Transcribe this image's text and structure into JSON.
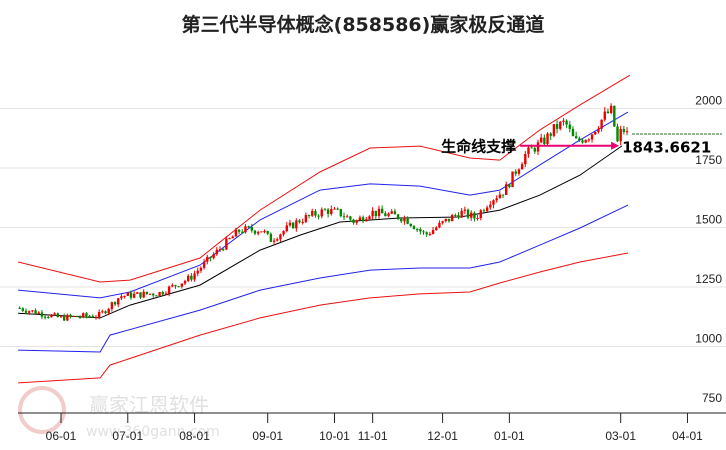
{
  "title": "第三代半导体概念(858586)赢家极反通道",
  "watermark": {
    "brand": "赢家江恩软件",
    "url": "www.360gann.com",
    "seal": "江恩赢家"
  },
  "chart_data": {
    "type": "candlestick",
    "title": "第三代半导体概念(858586)赢家极反通道",
    "x_unit": "trading-day index from 06-01",
    "x_ticks": [
      {
        "label": "06-01",
        "x": 0
      },
      {
        "label": "07-01",
        "x": 21
      },
      {
        "label": "08-01",
        "x": 42
      },
      {
        "label": "09-01",
        "x": 65
      },
      {
        "label": "10-01",
        "x": 86
      },
      {
        "label": "11-01",
        "x": 98
      },
      {
        "label": "12-01",
        "x": 120
      },
      {
        "label": "01-01",
        "x": 141
      },
      {
        "label": "03-01",
        "x": 176
      },
      {
        "label": "04-01",
        "x": 197
      }
    ],
    "y_ticks": [
      750,
      1000,
      1250,
      1500,
      1750,
      2000
    ],
    "ylim": [
      750,
      2200
    ],
    "close_path": [
      [
        -13.5,
        1162
      ],
      [
        -0.3,
        1120
      ],
      [
        12.3,
        1132
      ],
      [
        18.6,
        1212
      ],
      [
        31,
        1225
      ],
      [
        40.6,
        1288
      ],
      [
        46.9,
        1372
      ],
      [
        56.3,
        1490
      ],
      [
        63.2,
        1490
      ],
      [
        65.7,
        1447
      ],
      [
        75.2,
        1532
      ],
      [
        83.3,
        1573
      ],
      [
        87.7,
        1560
      ],
      [
        92.5,
        1523
      ],
      [
        97.2,
        1565
      ],
      [
        103.5,
        1552
      ],
      [
        108.2,
        1540
      ],
      [
        114.5,
        1468
      ],
      [
        120.1,
        1519
      ],
      [
        125.5,
        1565
      ],
      [
        130.2,
        1540
      ],
      [
        134.9,
        1615
      ],
      [
        139.6,
        1657
      ],
      [
        142.8,
        1733
      ],
      [
        145.9,
        1805
      ],
      [
        152.2,
        1868
      ],
      [
        155.3,
        1918
      ],
      [
        158.5,
        1943
      ],
      [
        161.6,
        1859
      ],
      [
        166.4,
        1888
      ],
      [
        171.1,
        1972
      ],
      [
        173.3,
        1994
      ],
      [
        174.8,
        1847
      ],
      [
        176.4,
        1918
      ],
      [
        178.3,
        1888
      ]
    ],
    "series": [
      {
        "name": "lifeline",
        "color": "#000000",
        "values": [
          [
            -13.5,
            1140
          ],
          [
            12.3,
            1120
          ],
          [
            21.7,
            1174
          ],
          [
            43.7,
            1258
          ],
          [
            62.6,
            1405
          ],
          [
            75.2,
            1468
          ],
          [
            87.7,
            1523
          ],
          [
            106.6,
            1540
          ],
          [
            125.5,
            1544
          ],
          [
            138,
            1573
          ],
          [
            150.6,
            1636
          ],
          [
            163.2,
            1720
          ],
          [
            176.4,
            1843
          ]
        ]
      },
      {
        "name": "upper-blue",
        "color": "#2222ee",
        "values": [
          [
            -13.5,
            1237
          ],
          [
            12.3,
            1204
          ],
          [
            21.7,
            1229
          ],
          [
            43.7,
            1342
          ],
          [
            62.6,
            1532
          ],
          [
            81.4,
            1657
          ],
          [
            97.2,
            1683
          ],
          [
            112.9,
            1674
          ],
          [
            128.6,
            1636
          ],
          [
            138,
            1657
          ],
          [
            150.6,
            1763
          ],
          [
            163.2,
            1868
          ],
          [
            178.3,
            1985
          ]
        ]
      },
      {
        "name": "lower-blue",
        "color": "#2222ee",
        "values": [
          [
            -13.5,
            985
          ],
          [
            12.3,
            977
          ],
          [
            15.4,
            1048
          ],
          [
            43.7,
            1153
          ],
          [
            62.6,
            1237
          ],
          [
            81.4,
            1288
          ],
          [
            97.2,
            1321
          ],
          [
            112.9,
            1330
          ],
          [
            128.6,
            1330
          ],
          [
            138,
            1355
          ],
          [
            150.6,
            1426
          ],
          [
            163.2,
            1498
          ],
          [
            178.3,
            1594
          ]
        ]
      },
      {
        "name": "upper-red",
        "color": "#ee1111",
        "values": [
          [
            -13.5,
            1355
          ],
          [
            12.3,
            1271
          ],
          [
            21.7,
            1279
          ],
          [
            43.7,
            1372
          ],
          [
            62.6,
            1573
          ],
          [
            81.4,
            1733
          ],
          [
            97.2,
            1834
          ],
          [
            112.9,
            1842
          ],
          [
            128.6,
            1792
          ],
          [
            138,
            1783
          ],
          [
            150.6,
            1910
          ],
          [
            163.2,
            2015
          ],
          [
            178.9,
            2140
          ]
        ]
      },
      {
        "name": "lower-red",
        "color": "#ee1111",
        "values": [
          [
            -13.5,
            847
          ],
          [
            12.3,
            868
          ],
          [
            15.4,
            922
          ],
          [
            43.7,
            1048
          ],
          [
            62.6,
            1120
          ],
          [
            81.4,
            1174
          ],
          [
            97.2,
            1204
          ],
          [
            112.9,
            1221
          ],
          [
            128.6,
            1229
          ],
          [
            138,
            1267
          ],
          [
            150.6,
            1313
          ],
          [
            163.2,
            1355
          ],
          [
            178.3,
            1393
          ]
        ]
      }
    ],
    "annotation": {
      "label": "生命线支撑",
      "value": "1843.6621",
      "from_x": 145,
      "to_x": 175.5,
      "y": 1843.6621
    },
    "last_close_line": 1893,
    "colors": {
      "up": "#ee0000",
      "down": "#008800",
      "arrow": "#e8006e"
    }
  }
}
